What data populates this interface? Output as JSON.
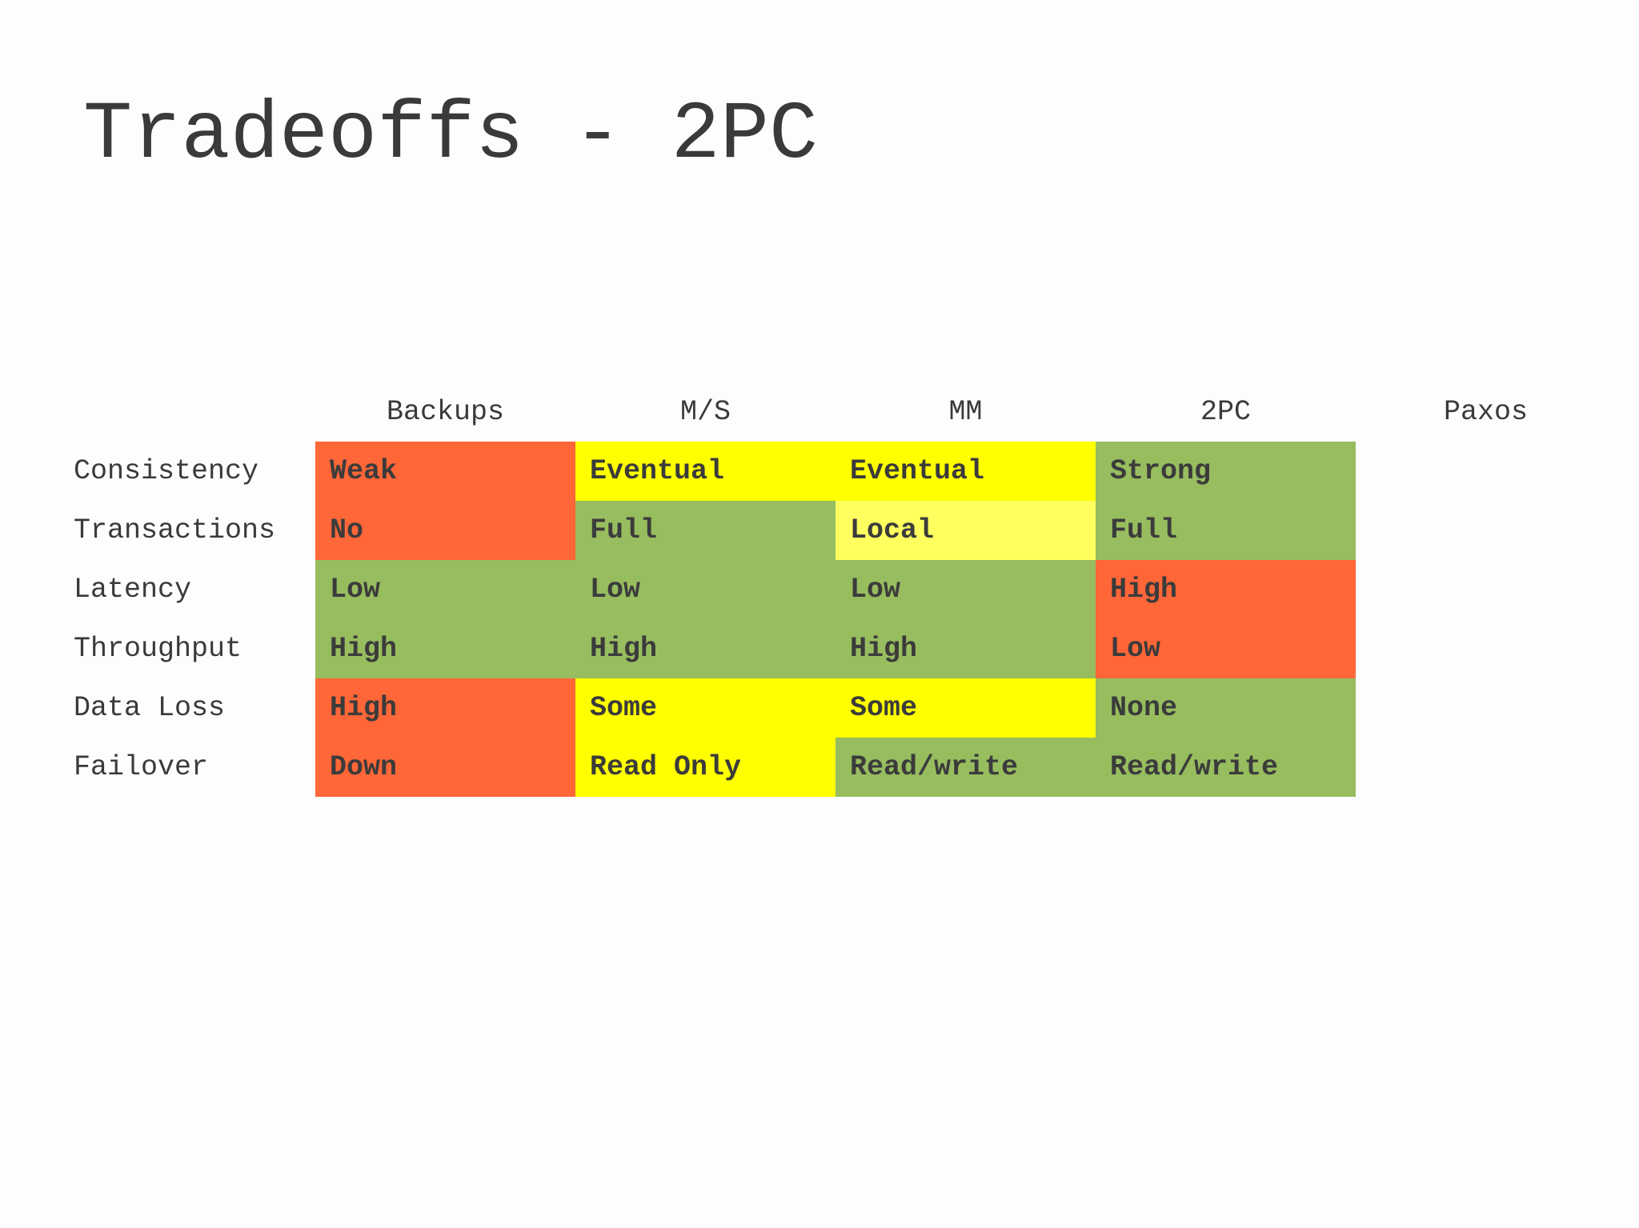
{
  "title": "Tradeoffs - 2PC",
  "colors": {
    "red": "#ff6638",
    "yellow": "#ffff00",
    "light_yellow": "#ffff60",
    "green": "#97bd5f",
    "none": "transparent"
  },
  "columns": [
    "Backups",
    "M/S",
    "MM",
    "2PC",
    "Paxos"
  ],
  "rows": [
    {
      "label": "Consistency",
      "cells": [
        {
          "text": "Weak",
          "color": "red"
        },
        {
          "text": "Eventual",
          "color": "yellow"
        },
        {
          "text": "Eventual",
          "color": "yellow"
        },
        {
          "text": "Strong",
          "color": "green"
        },
        {
          "text": "",
          "color": "none"
        }
      ]
    },
    {
      "label": "Transactions",
      "cells": [
        {
          "text": "No",
          "color": "red"
        },
        {
          "text": "Full",
          "color": "green"
        },
        {
          "text": "Local",
          "color": "light_yellow"
        },
        {
          "text": "Full",
          "color": "green"
        },
        {
          "text": "",
          "color": "none"
        }
      ]
    },
    {
      "label": "Latency",
      "cells": [
        {
          "text": "Low",
          "color": "green"
        },
        {
          "text": "Low",
          "color": "green"
        },
        {
          "text": "Low",
          "color": "green"
        },
        {
          "text": "High",
          "color": "red"
        },
        {
          "text": "",
          "color": "none"
        }
      ]
    },
    {
      "label": "Throughput",
      "cells": [
        {
          "text": "High",
          "color": "green"
        },
        {
          "text": "High",
          "color": "green"
        },
        {
          "text": "High",
          "color": "green"
        },
        {
          "text": "Low",
          "color": "red"
        },
        {
          "text": "",
          "color": "none"
        }
      ]
    },
    {
      "label": "Data Loss",
      "cells": [
        {
          "text": "High",
          "color": "red"
        },
        {
          "text": "Some",
          "color": "yellow"
        },
        {
          "text": "Some",
          "color": "yellow"
        },
        {
          "text": "None",
          "color": "green"
        },
        {
          "text": "",
          "color": "none"
        }
      ]
    },
    {
      "label": "Failover",
      "cells": [
        {
          "text": "Down",
          "color": "red"
        },
        {
          "text": "Read Only",
          "color": "yellow"
        },
        {
          "text": "Read/write",
          "color": "green"
        },
        {
          "text": "Read/write",
          "color": "green"
        },
        {
          "text": "",
          "color": "none"
        }
      ]
    }
  ]
}
